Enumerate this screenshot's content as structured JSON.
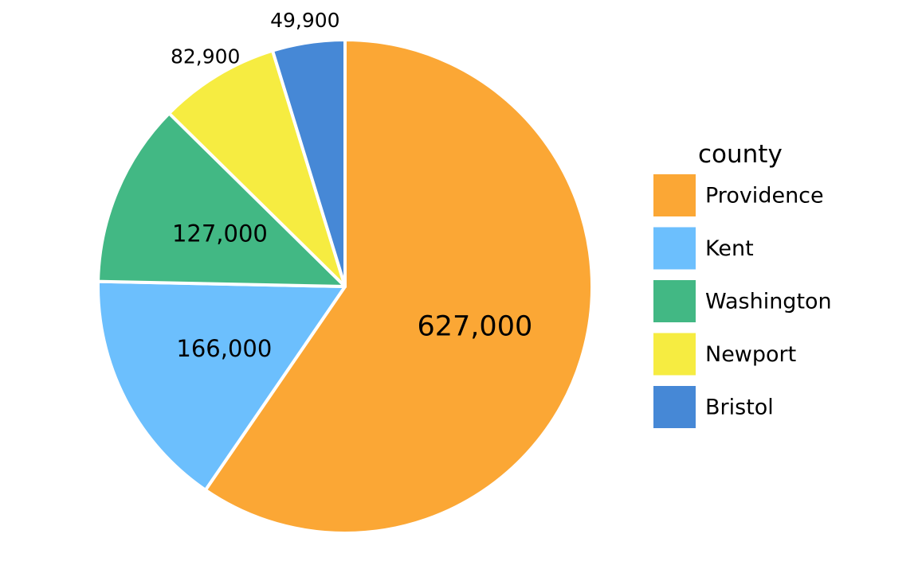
{
  "chart_data": {
    "type": "pie",
    "legend_title": "county",
    "legend_position": "right",
    "direction": "clockwise",
    "start": "12 o'clock",
    "slices": [
      {
        "label": "Providence",
        "value": 627000,
        "value_label": "627,000",
        "color": "#FBA735"
      },
      {
        "label": "Kent",
        "value": 166000,
        "value_label": "166,000",
        "color": "#6CBFFD"
      },
      {
        "label": "Washington",
        "value": 127000,
        "value_label": "127,000",
        "color": "#42B884"
      },
      {
        "label": "Newport",
        "value": 82900,
        "value_label": "82,900",
        "color": "#F6EC41"
      },
      {
        "label": "Bristol",
        "value": 49900,
        "value_label": "49,900",
        "color": "#4688D6"
      }
    ]
  }
}
